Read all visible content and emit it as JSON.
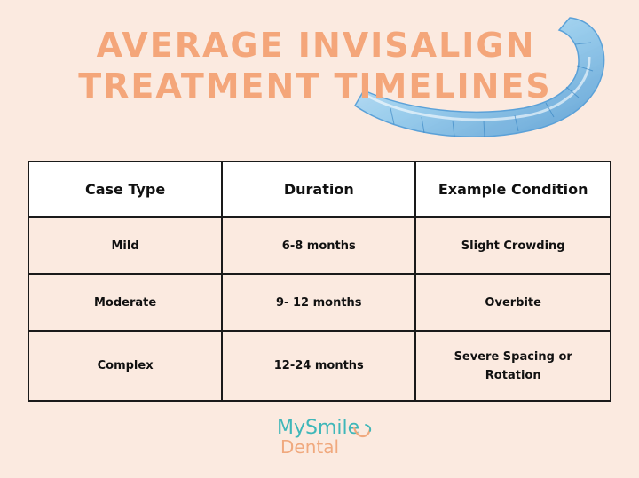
{
  "title": {
    "line1": "AVERAGE INVISALIGN",
    "line2": "TREATMENT TIMELINES"
  },
  "table": {
    "headers": [
      "Case Type",
      "Duration",
      "Example Condition"
    ],
    "rows": [
      [
        "Mild",
        "6-8 months",
        "Slight Crowding"
      ],
      [
        "Moderate",
        "9- 12 months",
        "Overbite"
      ],
      [
        "Complex",
        "12-24 months",
        "Severe Spacing or Rotation"
      ]
    ]
  },
  "logo": {
    "line1": "MySmile",
    "line2": "Dental"
  },
  "colors": {
    "background": "#fbeae0",
    "title": "#f4a67a",
    "header_bg": "#ffffff",
    "border": "#1a1a1a",
    "logo_teal": "#3fb7b9",
    "logo_peach": "#f0a97e",
    "aligner_blue": "#6ab8e8"
  },
  "icons": {
    "aligner": "clear-aligner-illustration",
    "logo_mark": "smile-swirl-icon"
  }
}
